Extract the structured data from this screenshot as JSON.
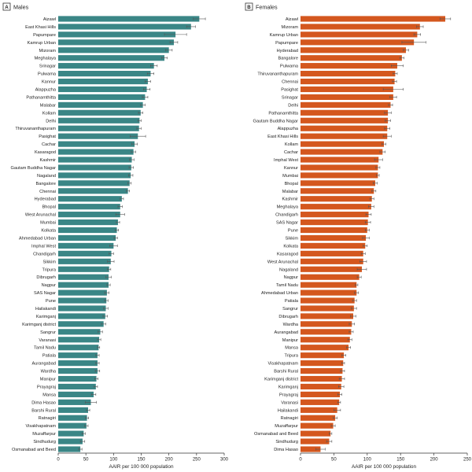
{
  "chart_data": [
    {
      "type": "bar",
      "orientation": "horizontal",
      "panel_label": "A",
      "title": "Males",
      "xlabel": "AAIR per 100 000 population",
      "xlim": [
        0,
        300
      ],
      "xticks": [
        "0",
        "50",
        "100",
        "150",
        "200",
        "250",
        "300"
      ],
      "color": "#3a8686",
      "categories": [
        "Aizawl",
        "East Khasi Hills",
        "Papumpare",
        "Kamrup Urban",
        "Mizoram",
        "Meghalaya",
        "Srinagar",
        "Pulwama",
        "Kannur",
        "Alappuzha",
        "Pathanamthitta",
        "Malabar",
        "Kollam",
        "Delhi",
        "Thiruvananthapuram",
        "Pasighat",
        "Cachar",
        "Kasaragod",
        "Kashmir",
        "Gautam Buddha Nagar",
        "Nagaland",
        "Bangalore",
        "Chennai",
        "Hyderabad",
        "Bhopal",
        "West Arunachal",
        "Mumbai",
        "Kolkata",
        "Ahmedabad Urban",
        "Imphal West",
        "Chandigarh",
        "Sikkim",
        "Tripura",
        "Dibrugarh",
        "Nagpur",
        "SAS Nagar",
        "Pune",
        "Hailakandi",
        "Karimganj",
        "Karimganj district",
        "Sangrur",
        "Varanasi",
        "Tamil Nadu",
        "Patiala",
        "Aurangabad",
        "Wardha",
        "Manipur",
        "Prayagraj",
        "Mansa",
        "Dima Hasao",
        "Barshi Rural",
        "Ratnagiri",
        "Visakhapatnam",
        "Muzaffarpur",
        "Sindhudurg",
        "Osmanabad and Beed"
      ],
      "values": [
        255,
        240,
        212,
        209,
        200,
        192,
        173,
        167,
        162,
        160,
        157,
        153,
        149,
        147,
        146,
        144,
        138,
        136,
        133,
        132,
        131,
        129,
        126,
        115,
        112,
        112,
        108,
        106,
        104,
        100,
        96,
        95,
        92,
        91,
        91,
        88,
        87,
        86,
        85,
        82,
        76,
        74,
        73,
        71,
        71,
        71,
        69,
        68,
        64,
        59,
        54,
        52,
        51,
        46,
        44,
        40
      ],
      "errors": [
        11,
        8,
        20,
        7,
        6,
        5,
        6,
        6,
        5,
        6,
        5,
        4,
        4,
        3,
        4,
        14,
        5,
        4,
        4,
        4,
        4,
        3,
        3,
        3,
        4,
        8,
        3,
        3,
        3,
        7,
        4,
        6,
        3,
        5,
        3,
        4,
        3,
        4,
        4,
        4,
        4,
        3,
        2,
        3,
        3,
        4,
        3,
        3,
        4,
        10,
        3,
        3,
        3,
        3,
        4,
        3
      ]
    },
    {
      "type": "bar",
      "orientation": "horizontal",
      "panel_label": "B",
      "title": "Females",
      "xlabel": "AAIR per 100 000 population",
      "xlim": [
        0,
        250
      ],
      "xticks": [
        "0",
        "50",
        "100",
        "150",
        "200",
        "250"
      ],
      "color": "#d4571e",
      "categories": [
        "Aizawl",
        "Mizoram",
        "Kamrup Urban",
        "Papumpare",
        "Hyderabad",
        "Bangalore",
        "Pulwama",
        "Thiruvananthapuram",
        "Chennai",
        "Pasighat",
        "Srinagar",
        "Delhi",
        "Pathanamthitta",
        "Gautam Buddha Nagar",
        "Alappuzha",
        "East Khasi Hills",
        "Kollam",
        "Cachar",
        "Imphal West",
        "Kannur",
        "Mumbai",
        "Bhopal",
        "Malabar",
        "Kashmir",
        "Meghalaya",
        "Chandigarh",
        "SAS Nagar",
        "Pune",
        "Sikkim",
        "Kolkata",
        "Kasaragod",
        "West Arunachal",
        "Nagaland",
        "Nagpur",
        "Tamil Nadu",
        "Ahmedabad Urban",
        "Patiala",
        "Sangrur",
        "Dibrugarh",
        "Wardha",
        "Aurangabad",
        "Manipur",
        "Mansa",
        "Tripura",
        "Visakhapatnam",
        "Barshi Rural",
        "Karimganj district",
        "Karimganj",
        "Prayagraj",
        "Varanasi",
        "Hailakandi",
        "Ratnagiri",
        "Muzaffarpur",
        "Osmanabad and Beed",
        "Sindhudurg",
        "Dima Hasao"
      ],
      "values": [
        217,
        179,
        175,
        170,
        158,
        152,
        145,
        142,
        141,
        139,
        139,
        135,
        131,
        131,
        130,
        130,
        125,
        123,
        117,
        116,
        116,
        112,
        110,
        107,
        106,
        102,
        101,
        100,
        98,
        97,
        94,
        94,
        92,
        88,
        84,
        84,
        81,
        80,
        79,
        77,
        76,
        74,
        72,
        65,
        64,
        63,
        62,
        61,
        59,
        58,
        55,
        52,
        49,
        45,
        43,
        30
      ],
      "errors": [
        8,
        5,
        5,
        18,
        4,
        3,
        9,
        3,
        3,
        15,
        5,
        3,
        5,
        4,
        4,
        6,
        3,
        4,
        6,
        3,
        2,
        3,
        3,
        3,
        4,
        4,
        4,
        3,
        5,
        3,
        3,
        5,
        7,
        3,
        2,
        3,
        3,
        4,
        4,
        4,
        3,
        3,
        3,
        3,
        2,
        3,
        4,
        4,
        3,
        2,
        5,
        3,
        3,
        2,
        4,
        7
      ]
    }
  ]
}
